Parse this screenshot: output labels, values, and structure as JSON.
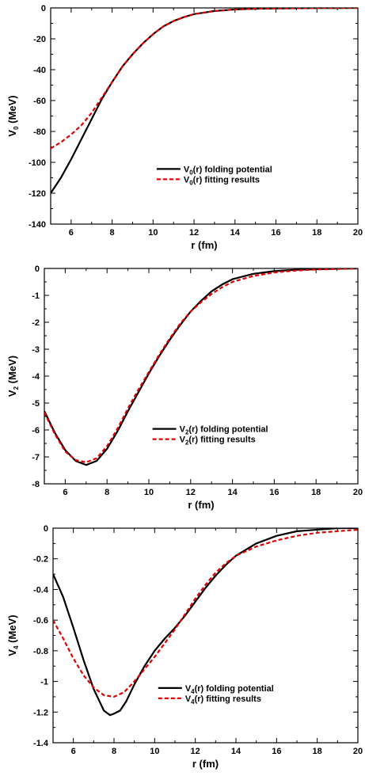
{
  "colors": {
    "folding": "#000000",
    "fitting": "#e00000"
  },
  "chart_data": [
    {
      "type": "line",
      "xlabel": "r (fm)",
      "ylabel": {
        "main": "V",
        "sub": "0",
        "unit": " (MeV)"
      },
      "xlim": [
        5,
        20
      ],
      "ylim": [
        -140,
        0
      ],
      "xticks": [
        6,
        8,
        10,
        12,
        14,
        16,
        18,
        20
      ],
      "xtick_labels": [
        "6",
        "8",
        "10",
        "12",
        "14",
        "16",
        "18",
        "20"
      ],
      "yticks": [
        0,
        -20,
        -40,
        -60,
        -80,
        -100,
        -120,
        -140
      ],
      "ytick_labels": [
        "0",
        "-20",
        "-40",
        "-60",
        "-80",
        "-100",
        "-120",
        "-140"
      ],
      "legend_position": "center-right",
      "series": [
        {
          "name": {
            "main": "V",
            "sub": "0",
            "rest": "(r) folding potential"
          },
          "style": "solid",
          "x": [
            5,
            5.5,
            6,
            6.5,
            7,
            7.5,
            8,
            8.5,
            9,
            9.5,
            10,
            10.5,
            11,
            11.5,
            12,
            13,
            14,
            15,
            16,
            17,
            18,
            19,
            20
          ],
          "y": [
            -120,
            -110,
            -98,
            -85,
            -72,
            -59,
            -48,
            -38,
            -30,
            -23,
            -17,
            -12,
            -8.5,
            -6,
            -4,
            -2,
            -1,
            -0.5,
            -0.3,
            -0.2,
            -0.1,
            -0.05,
            0
          ]
        },
        {
          "name": {
            "main": "V",
            "sub": "0",
            "rest": "(r) fitting results"
          },
          "style": "dashed",
          "x": [
            5,
            5.5,
            6,
            6.5,
            7,
            7.5,
            8,
            8.5,
            9,
            9.5,
            10,
            10.5,
            11,
            11.5,
            12,
            13,
            14,
            15,
            16,
            17,
            18,
            19,
            20
          ],
          "y": [
            -91,
            -87,
            -82,
            -76,
            -68,
            -58,
            -48,
            -38,
            -30,
            -23,
            -17,
            -12,
            -8.5,
            -6,
            -4,
            -2,
            -1,
            -0.5,
            -0.3,
            -0.2,
            -0.1,
            -0.05,
            0
          ]
        }
      ]
    },
    {
      "type": "line",
      "xlabel": "r (fm)",
      "ylabel": {
        "main": "V",
        "sub": "2",
        "unit": " (MeV)"
      },
      "xlim": [
        5,
        20
      ],
      "ylim": [
        -8,
        0
      ],
      "xticks": [
        6,
        8,
        10,
        12,
        14,
        16,
        18,
        20
      ],
      "xtick_labels": [
        "6",
        "8",
        "10",
        "12",
        "14",
        "16",
        "18",
        "20"
      ],
      "yticks": [
        0,
        -1,
        -2,
        -3,
        -4,
        -5,
        -6,
        -7,
        -8
      ],
      "ytick_labels": [
        "0",
        "-1",
        "-2",
        "-3",
        "-4",
        "-5",
        "-6",
        "-7",
        "-8"
      ],
      "legend_position": "center-right",
      "series": [
        {
          "name": {
            "main": "V",
            "sub": "2",
            "rest": "(r) folding potential"
          },
          "style": "solid",
          "x": [
            5,
            5.5,
            6,
            6.5,
            7,
            7.5,
            8,
            8.5,
            9,
            9.5,
            10,
            10.5,
            11,
            11.5,
            12,
            12.5,
            13,
            13.5,
            14,
            15,
            16,
            17,
            18,
            19,
            20
          ],
          "y": [
            -5.3,
            -6.1,
            -6.75,
            -7.15,
            -7.3,
            -7.15,
            -6.7,
            -6.05,
            -5.3,
            -4.6,
            -3.9,
            -3.25,
            -2.65,
            -2.1,
            -1.6,
            -1.2,
            -0.85,
            -0.6,
            -0.4,
            -0.2,
            -0.1,
            -0.05,
            -0.03,
            -0.01,
            0
          ]
        },
        {
          "name": {
            "main": "V",
            "sub": "2",
            "rest": "(r) fitting results"
          },
          "style": "dashed",
          "x": [
            5,
            5.5,
            6,
            6.5,
            7,
            7.5,
            8,
            8.5,
            9,
            9.5,
            10,
            10.5,
            11,
            11.5,
            12,
            12.5,
            13,
            13.5,
            14,
            15,
            16,
            17,
            18,
            19,
            20
          ],
          "y": [
            -5.35,
            -6.15,
            -6.8,
            -7.12,
            -7.2,
            -7.05,
            -6.6,
            -5.95,
            -5.2,
            -4.5,
            -3.85,
            -3.2,
            -2.6,
            -2.05,
            -1.6,
            -1.25,
            -0.95,
            -0.7,
            -0.5,
            -0.28,
            -0.15,
            -0.08,
            -0.04,
            -0.02,
            0
          ]
        }
      ]
    },
    {
      "type": "line",
      "xlabel": "r (fm)",
      "ylabel": {
        "main": "V",
        "sub": "4",
        "unit": " (MeV)"
      },
      "xlim": [
        5,
        20
      ],
      "ylim": [
        -1.4,
        0
      ],
      "xticks": [
        6,
        8,
        10,
        12,
        14,
        16,
        18,
        20
      ],
      "xtick_labels": [
        "6",
        "8",
        "10",
        "12",
        "14",
        "16",
        "18",
        "20"
      ],
      "yticks": [
        0,
        -0.2,
        -0.4,
        -0.6,
        -0.8,
        -1,
        -1.2,
        -1.4
      ],
      "ytick_labels": [
        "0",
        "-0.2",
        "-0.4",
        "-0.6",
        "-0.8",
        "-1",
        "-1.2",
        "-1.4"
      ],
      "legend_position": "center-right",
      "series": [
        {
          "name": {
            "main": "V",
            "sub": "4",
            "rest": "(r) folding potential"
          },
          "style": "solid",
          "x": [
            5,
            5.5,
            6,
            6.5,
            7,
            7.5,
            7.8,
            8,
            8.3,
            8.6,
            9,
            9.5,
            10,
            10.5,
            11,
            11.5,
            12,
            12.5,
            13,
            13.5,
            14,
            15,
            16,
            17,
            18,
            19,
            20
          ],
          "y": [
            -0.3,
            -0.45,
            -0.65,
            -0.86,
            -1.05,
            -1.19,
            -1.22,
            -1.21,
            -1.19,
            -1.13,
            -1.02,
            -0.9,
            -0.8,
            -0.72,
            -0.65,
            -0.57,
            -0.48,
            -0.39,
            -0.31,
            -0.24,
            -0.18,
            -0.1,
            -0.05,
            -0.02,
            -0.01,
            0,
            0
          ]
        },
        {
          "name": {
            "main": "V",
            "sub": "4",
            "rest": "(r) fitting results"
          },
          "style": "dashed",
          "x": [
            5,
            5.5,
            6,
            6.5,
            7,
            7.5,
            8,
            8.5,
            9,
            9.5,
            10,
            10.5,
            11,
            11.5,
            12,
            12.5,
            13,
            13.5,
            14,
            15,
            16,
            17,
            18,
            19,
            20
          ],
          "y": [
            -0.6,
            -0.72,
            -0.85,
            -0.96,
            -1.04,
            -1.09,
            -1.1,
            -1.07,
            -1.0,
            -0.92,
            -0.84,
            -0.75,
            -0.66,
            -0.56,
            -0.46,
            -0.37,
            -0.29,
            -0.23,
            -0.18,
            -0.12,
            -0.08,
            -0.05,
            -0.03,
            -0.02,
            -0.01
          ]
        }
      ]
    }
  ]
}
